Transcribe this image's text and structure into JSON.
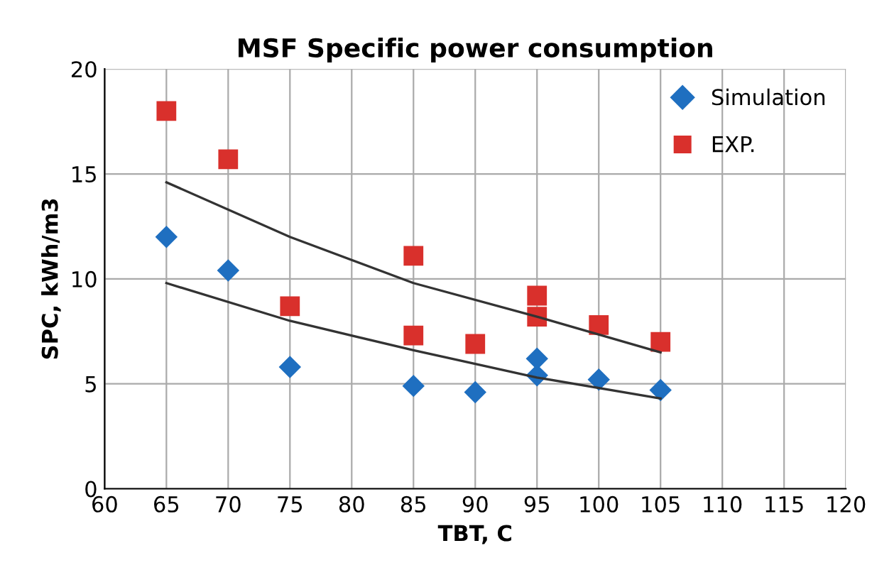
{
  "chart_data": {
    "type": "scatter",
    "title": "MSF Specific power consumption",
    "xlabel": "TBT, C",
    "ylabel": "SPC, kWh/m3",
    "series": [
      {
        "name": "Simulation",
        "color": "#1f6fc0",
        "marker": "diamond",
        "x": [
          65,
          70,
          75,
          85,
          90,
          95,
          95,
          100,
          105
        ],
        "values": [
          12.0,
          10.4,
          5.8,
          4.9,
          4.6,
          6.2,
          5.4,
          5.2,
          4.7
        ]
      },
      {
        "name": "EXP.",
        "color": "#d9302c",
        "marker": "square",
        "x": [
          65,
          70,
          75,
          85,
          85,
          90,
          95,
          95,
          100,
          105
        ],
        "values": [
          18.0,
          15.7,
          8.7,
          11.1,
          7.3,
          6.9,
          9.2,
          8.2,
          7.8,
          7.0
        ]
      },
      {
        "type": "line",
        "color": "#333333",
        "marker": "none",
        "x": [
          65,
          75,
          85,
          95,
          105
        ],
        "values": [
          14.6,
          12.0,
          9.8,
          8.2,
          6.5
        ]
      },
      {
        "type": "line",
        "color": "#333333",
        "marker": "none",
        "x": [
          65,
          75,
          85,
          95,
          105
        ],
        "values": [
          9.8,
          8.0,
          6.6,
          5.3,
          4.3
        ]
      }
    ],
    "xlim": [
      60,
      120
    ],
    "xticks": [
      60,
      65,
      70,
      75,
      80,
      85,
      90,
      95,
      100,
      105,
      110,
      115,
      120
    ],
    "ylim": [
      0,
      20
    ],
    "yticks": [
      0,
      5,
      10,
      15,
      20
    ],
    "grid": true,
    "legend": "top right"
  }
}
